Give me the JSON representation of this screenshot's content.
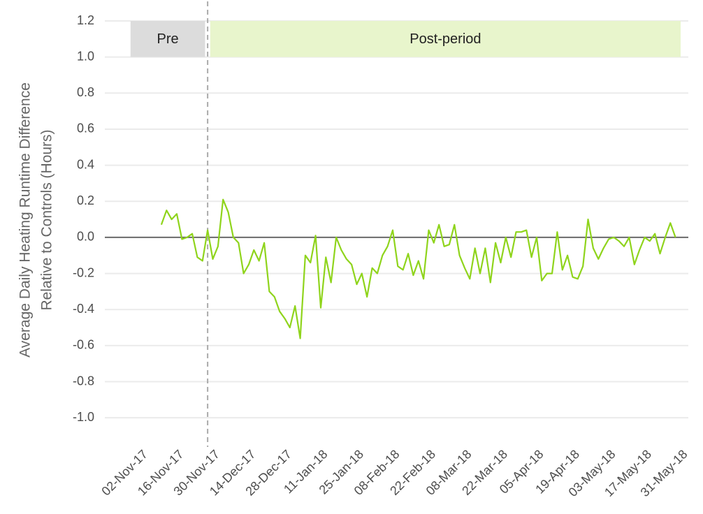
{
  "chart_data": {
    "type": "line",
    "ylabel": [
      "Average Daily Heating Runtime Difference",
      "Relative to Controls (Hours)"
    ],
    "xlim": [
      "2017-10-17",
      "2018-06-01"
    ],
    "xticks": [
      {
        "value": "2017-11-02",
        "label": "02-Nov-17"
      },
      {
        "value": "2017-11-16",
        "label": "16-Nov-17"
      },
      {
        "value": "2017-11-30",
        "label": "30-Nov-17"
      },
      {
        "value": "2017-12-14",
        "label": "14-Dec-17"
      },
      {
        "value": "2017-12-28",
        "label": "28-Dec-17"
      },
      {
        "value": "2018-01-11",
        "label": "11-Jan-18"
      },
      {
        "value": "2018-01-25",
        "label": "25-Jan-18"
      },
      {
        "value": "2018-02-08",
        "label": "08-Feb-18"
      },
      {
        "value": "2018-02-22",
        "label": "22-Feb-18"
      },
      {
        "value": "2018-03-08",
        "label": "08-Mar-18"
      },
      {
        "value": "2018-03-22",
        "label": "22-Mar-18"
      },
      {
        "value": "2018-04-05",
        "label": "05-Apr-18"
      },
      {
        "value": "2018-04-19",
        "label": "19-Apr-18"
      },
      {
        "value": "2018-05-03",
        "label": "03-May-18"
      },
      {
        "value": "2018-05-17",
        "label": "17-May-18"
      },
      {
        "value": "2018-05-31",
        "label": "31-May-18"
      }
    ],
    "ylim": [
      -1.1,
      1.2
    ],
    "yticks": [
      {
        "value": 1.2,
        "label": "1.2"
      },
      {
        "value": 1,
        "label": "1.0"
      },
      0.8,
      0.6,
      0.4,
      0.2,
      {
        "value": 0,
        "label": "0.0"
      },
      -0.2,
      -0.4,
      -0.6,
      -0.8,
      {
        "value": -1,
        "label": "-1.0"
      }
    ],
    "grid": true,
    "hline": 0,
    "vline": "2017-11-26",
    "regions": [
      {
        "label": "Pre",
        "x": [
          "2017-10-27",
          "2017-11-25"
        ],
        "y": [
          1,
          1.2
        ],
        "color": "#dcdcdc"
      },
      {
        "label": "Post-period",
        "x": [
          "2017-11-27",
          "2018-05-29"
        ],
        "y": [
          1,
          1.2
        ],
        "color": "#e8f5cc"
      }
    ],
    "x": [
      "2017-11-08",
      "2017-11-10",
      "2017-11-12",
      "2017-11-14",
      "2017-11-16",
      "2017-11-18",
      "2017-11-20",
      "2017-11-22",
      "2017-11-24",
      "2017-11-26",
      "2017-11-28",
      "2017-11-30",
      "2017-12-02",
      "2017-12-04",
      "2017-12-06",
      "2017-12-08",
      "2017-12-10",
      "2017-12-12",
      "2017-12-14",
      "2017-12-16",
      "2017-12-18",
      "2017-12-20",
      "2017-12-22",
      "2017-12-24",
      "2017-12-26",
      "2017-12-28",
      "2017-12-30",
      "2018-01-01",
      "2018-01-03",
      "2018-01-05",
      "2018-01-07",
      "2018-01-09",
      "2018-01-11",
      "2018-01-13",
      "2018-01-15",
      "2018-01-17",
      "2018-01-19",
      "2018-01-21",
      "2018-01-23",
      "2018-01-25",
      "2018-01-27",
      "2018-01-29",
      "2018-01-31",
      "2018-02-02",
      "2018-02-04",
      "2018-02-06",
      "2018-02-08",
      "2018-02-10",
      "2018-02-12",
      "2018-02-14",
      "2018-02-16",
      "2018-02-18",
      "2018-02-20",
      "2018-02-22",
      "2018-02-24",
      "2018-02-26",
      "2018-02-28",
      "2018-03-02",
      "2018-03-04",
      "2018-03-06",
      "2018-03-08",
      "2018-03-10",
      "2018-03-12",
      "2018-03-14",
      "2018-03-16",
      "2018-03-18",
      "2018-03-20",
      "2018-03-22",
      "2018-03-24",
      "2018-03-26",
      "2018-03-28",
      "2018-03-30",
      "2018-04-01",
      "2018-04-03",
      "2018-04-05",
      "2018-04-07",
      "2018-04-09",
      "2018-04-11",
      "2018-04-13",
      "2018-04-15",
      "2018-04-17",
      "2018-04-19",
      "2018-04-21",
      "2018-04-23",
      "2018-04-25",
      "2018-04-27",
      "2018-04-29",
      "2018-05-01",
      "2018-05-03",
      "2018-05-05",
      "2018-05-07",
      "2018-05-09",
      "2018-05-11",
      "2018-05-13",
      "2018-05-15",
      "2018-05-17",
      "2018-05-19",
      "2018-05-21",
      "2018-05-23",
      "2018-05-25",
      "2018-05-27"
    ],
    "series": [
      {
        "color": "#8fd41c",
        "values": [
          0.07,
          0.15,
          0.1,
          0.13,
          -0.01,
          0.0,
          0.02,
          -0.11,
          -0.13,
          0.04,
          -0.12,
          -0.05,
          0.21,
          0.14,
          0.0,
          -0.03,
          -0.2,
          -0.15,
          -0.07,
          -0.13,
          -0.03,
          -0.3,
          -0.33,
          -0.41,
          -0.45,
          -0.5,
          -0.38,
          -0.56,
          -0.1,
          -0.14,
          0.01,
          -0.39,
          -0.11,
          -0.25,
          0.0,
          -0.07,
          -0.12,
          -0.15,
          -0.26,
          -0.2,
          -0.33,
          -0.17,
          -0.2,
          -0.1,
          -0.05,
          0.04,
          -0.16,
          -0.18,
          -0.09,
          -0.21,
          -0.13,
          -0.23,
          0.04,
          -0.03,
          0.07,
          -0.05,
          -0.04,
          0.07,
          -0.1,
          -0.17,
          -0.23,
          -0.06,
          -0.2,
          -0.06,
          -0.25,
          -0.03,
          -0.14,
          0.0,
          -0.11,
          0.03,
          0.03,
          0.04,
          -0.11,
          0.0,
          -0.24,
          -0.2,
          -0.2,
          0.03,
          -0.18,
          -0.1,
          -0.22,
          -0.23,
          -0.16,
          0.1,
          -0.06,
          -0.12,
          -0.06,
          -0.01,
          0.0,
          -0.02,
          -0.05,
          0.0,
          -0.15,
          -0.07,
          0.0,
          -0.02,
          0.02,
          -0.09,
          0.0,
          0.08,
          0.0
        ]
      }
    ]
  }
}
